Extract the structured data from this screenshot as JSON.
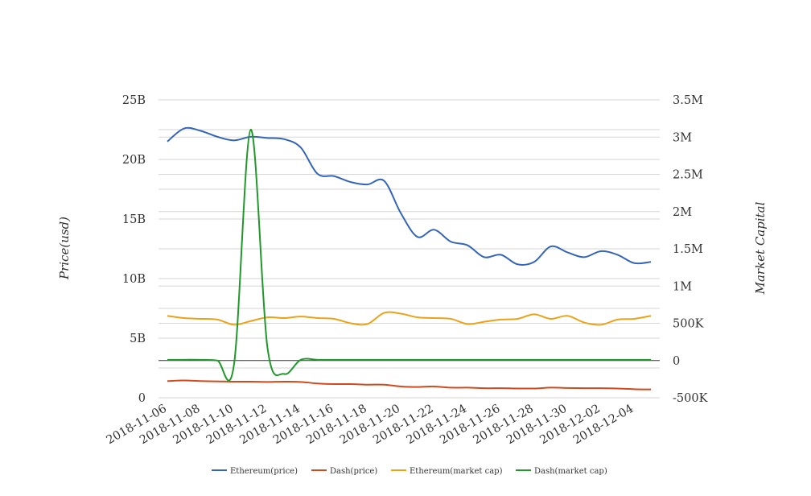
{
  "chart_data": {
    "type": "line",
    "y_left_label": "Price(usd)",
    "y_right_label": "Market Capital",
    "y_left_ticks": [
      "0",
      "5B",
      "10B",
      "15B",
      "20B",
      "25B"
    ],
    "y_right_ticks": [
      "-500K",
      "0",
      "500K",
      "1M",
      "1.5M",
      "2M",
      "2.5M",
      "3M",
      "3.5M"
    ],
    "y_left_range": [
      0,
      25000000000
    ],
    "y_right_range": [
      -500000,
      3500000
    ],
    "x_tick_labels": [
      "2018-11-06",
      "2018-11-08",
      "2018-11-10",
      "2018-11-12",
      "2018-11-14",
      "2018-11-16",
      "2018-11-18",
      "2018-11-20",
      "2018-11-22",
      "2018-11-24",
      "2018-11-26",
      "2018-11-28",
      "2018-11-30",
      "2018-12-02",
      "2018-12-04"
    ],
    "x": [
      "2018-11-06",
      "2018-11-07",
      "2018-11-08",
      "2018-11-09",
      "2018-11-10",
      "2018-11-11",
      "2018-11-12",
      "2018-11-13",
      "2018-11-14",
      "2018-11-15",
      "2018-11-16",
      "2018-11-17",
      "2018-11-18",
      "2018-11-19",
      "2018-11-20",
      "2018-11-21",
      "2018-11-22",
      "2018-11-23",
      "2018-11-24",
      "2018-11-25",
      "2018-11-26",
      "2018-11-27",
      "2018-11-28",
      "2018-11-29",
      "2018-11-30",
      "2018-12-01",
      "2018-12-02",
      "2018-12-03",
      "2018-12-04",
      "2018-12-05"
    ],
    "grid": true,
    "legend_position": "bottom",
    "series": [
      {
        "name": "Ethereum(price)",
        "axis": "left",
        "color": "#3465b8",
        "values": [
          21500000000.0,
          22600000000.0,
          22400000000.0,
          21900000000.0,
          21600000000.0,
          21900000000.0,
          21800000000.0,
          21700000000.0,
          21000000000.0,
          18800000000.0,
          18600000000.0,
          18100000000.0,
          17900000000.0,
          18200000000.0,
          15500000000.0,
          13500000000.0,
          14100000000.0,
          13100000000.0,
          12800000000.0,
          11800000000.0,
          12000000000.0,
          11200000000.0,
          11400000000.0,
          12700000000.0,
          12200000000.0,
          11800000000.0,
          12300000000.0,
          12000000000.0,
          11300000000.0,
          11400000000.0
        ]
      },
      {
        "name": "Dash(price)",
        "axis": "left",
        "color": "#cf4a1c",
        "values": [
          1400000000.0,
          1450000000.0,
          1400000000.0,
          1380000000.0,
          1350000000.0,
          1350000000.0,
          1330000000.0,
          1350000000.0,
          1330000000.0,
          1200000000.0,
          1150000000.0,
          1150000000.0,
          1100000000.0,
          1100000000.0,
          950000000.0,
          900000000.0,
          950000000.0,
          850000000.0,
          850000000.0,
          800000000.0,
          800000000.0,
          780000000.0,
          780000000.0,
          850000000.0,
          820000000.0,
          800000000.0,
          800000000.0,
          780000000.0,
          720000000.0,
          700000000.0
        ]
      },
      {
        "name": "Ethereum(market cap)",
        "axis": "right",
        "color": "#eba218",
        "values": [
          600000,
          570000,
          560000,
          550000,
          480000,
          530000,
          580000,
          570000,
          590000,
          570000,
          560000,
          500000,
          490000,
          640000,
          630000,
          580000,
          570000,
          560000,
          490000,
          520000,
          550000,
          560000,
          620000,
          560000,
          600000,
          510000,
          480000,
          550000,
          560000,
          600000
        ]
      },
      {
        "name": "Dash(market cap)",
        "axis": "right",
        "color": "#21982a",
        "values": [
          10000,
          10000,
          10000,
          0,
          -50000,
          3100000,
          180000,
          -180000,
          10000,
          10000,
          10000,
          10000,
          10000,
          10000,
          10000,
          10000,
          10000,
          10000,
          10000,
          10000,
          10000,
          10000,
          10000,
          10000,
          10000,
          10000,
          10000,
          10000,
          10000,
          10000
        ]
      }
    ]
  }
}
